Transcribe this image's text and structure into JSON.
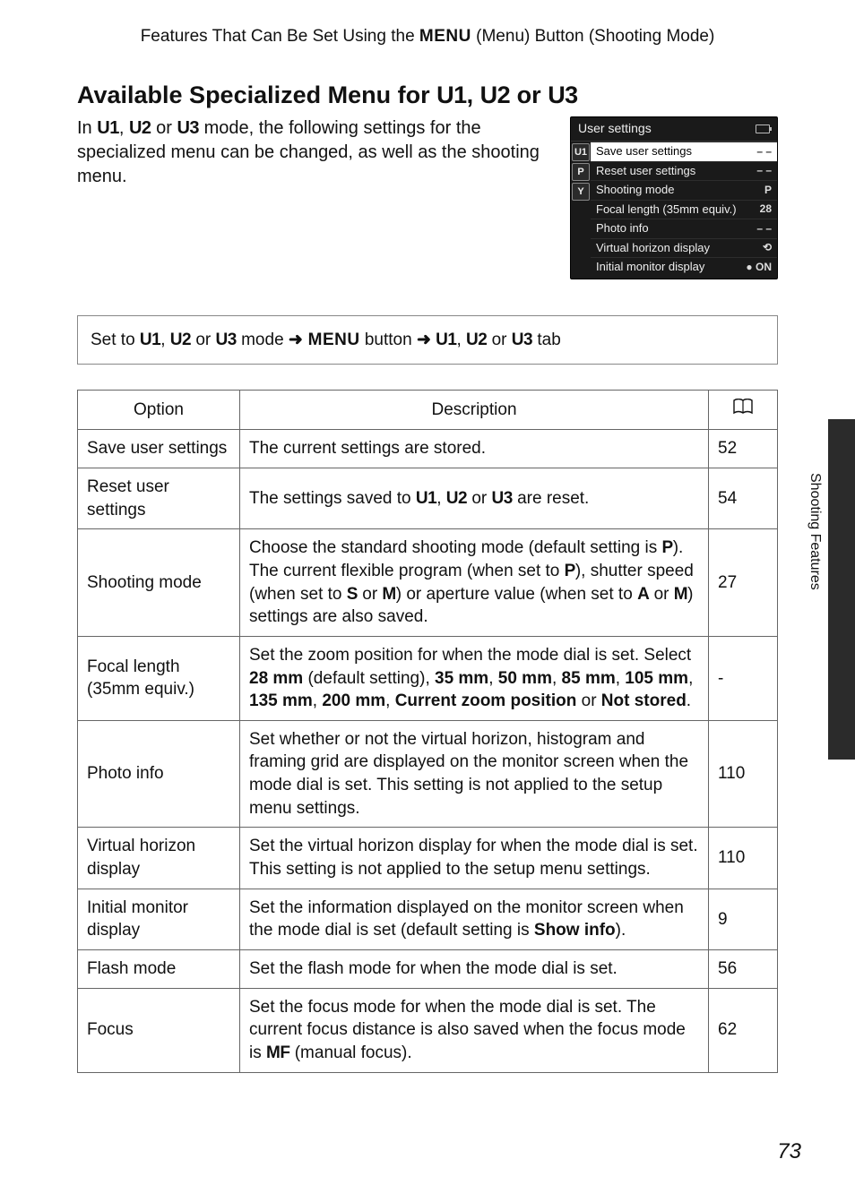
{
  "header": {
    "prefix": "Features That Can Be Set Using the ",
    "menu_word": "MENU",
    "suffix": " (Menu) Button (Shooting Mode)"
  },
  "title": {
    "prefix": "Available Specialized Menu for ",
    "u1": "U1",
    "comma": ", ",
    "u2": "U2",
    "or": " or ",
    "u3": "U3"
  },
  "intro": {
    "s1a": "In ",
    "u1": "U1",
    "c1": ", ",
    "u2": "U2",
    "or": " or ",
    "u3": "U3",
    "s1b": " mode, the following settings for the specialized menu can be changed, as well as the shooting menu."
  },
  "screenshot": {
    "title": "User settings",
    "sidebar": [
      "U1",
      "P",
      "Y"
    ],
    "rows": [
      {
        "label": "Save user settings",
        "val": "– –",
        "selected": true
      },
      {
        "label": "Reset user settings",
        "val": "– –"
      },
      {
        "label": "Shooting mode",
        "val": "P"
      },
      {
        "label": "Focal length (35mm equiv.)",
        "val": "28"
      },
      {
        "label": "Photo info",
        "val": "– –"
      },
      {
        "label": "Virtual horizon display",
        "val": "⟲"
      },
      {
        "label": "Initial monitor display",
        "val": "● ON"
      }
    ]
  },
  "nav": {
    "a": "Set to ",
    "u1": "U1",
    "c1": ", ",
    "u2": "U2",
    "or": " or ",
    "u3": "U3",
    "b": " mode ",
    "arrow": "➜",
    "menu": " MENU",
    "c": " button ",
    "d": " tab",
    "u1b": "U1",
    "c2": ", ",
    "u2b": "U2",
    "or2": " or ",
    "u3b": "U3"
  },
  "table": {
    "headers": {
      "opt": "Option",
      "desc": "Description",
      "page_icon": "📖"
    },
    "rows": [
      {
        "opt": "Save user settings",
        "desc_plain": "The current settings are stored.",
        "page": "52"
      },
      {
        "opt": "Reset user settings",
        "desc_html": "The settings saved to <span class='u'>U1</span>, <span class='u'>U2</span> or <span class='u'>U3</span> are reset.",
        "page": "54"
      },
      {
        "opt": "Shooting mode",
        "desc_html": "Choose the standard shooting mode (default setting is <span class='u'>P</span>). The current flexible program (when set to <span class='u'>P</span>), shutter speed (when set to <span class='u'>S</span> or <span class='u'>M</span>) or aperture value (when set to <span class='u'>A</span> or <span class='u'>M</span>) settings are also saved.",
        "page": "27"
      },
      {
        "opt": "Focal length (35mm equiv.)",
        "desc_html": "Set the zoom position for when the mode dial is set. Select <b>28 mm</b> (default setting), <b>35 mm</b>, <b>50 mm</b>, <b>85 mm</b>, <b>105 mm</b>, <b>135 mm</b>, <b>200 mm</b>, <b>Current zoom position</b> or <b>Not stored</b>.",
        "page": "-"
      },
      {
        "opt": "Photo info",
        "desc_plain": "Set whether or not the virtual horizon, histogram and framing grid are displayed on the monitor screen when the mode dial is set. This setting is not applied to the setup menu settings.",
        "page": "110"
      },
      {
        "opt": "Virtual horizon display",
        "desc_plain": "Set the virtual horizon display for when the mode dial is set. This setting is not applied to the setup menu settings.",
        "page": "110"
      },
      {
        "opt": "Initial monitor display",
        "desc_html": "Set the information displayed on the monitor screen when the mode dial is set (default setting is <b>Show info</b>).",
        "page": "9"
      },
      {
        "opt": "Flash mode",
        "desc_plain": "Set the flash mode for when the mode dial is set.",
        "page": "56"
      },
      {
        "opt": "Focus",
        "desc_html": "Set the focus mode for when the mode dial is set. The current focus distance is also saved when the focus mode is <span class='u'>MF</span> (manual focus).",
        "page": "62"
      }
    ]
  },
  "side_label": "Shooting Features",
  "page_number": "73"
}
